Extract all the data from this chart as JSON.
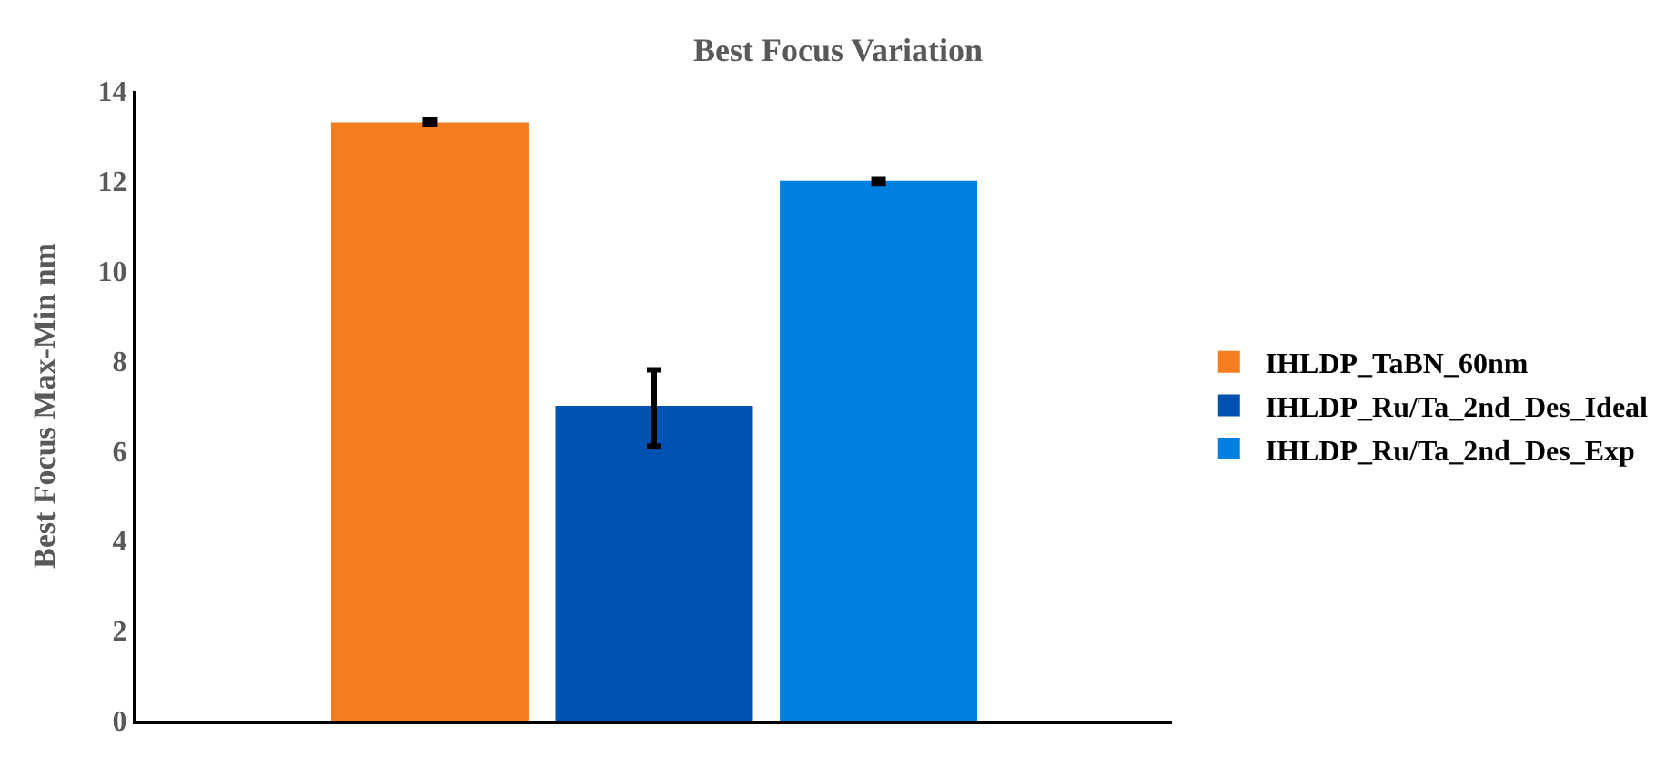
{
  "chart_data": {
    "type": "bar",
    "title": "Best Focus Variation",
    "ylabel": "Best Focus Max-Min nm",
    "categories": [
      null
    ],
    "series": [
      {
        "name": "IHLDP_TaBN_60nm",
        "color": "#f47d20",
        "values": [
          13.3
        ],
        "errors": [
          0.05
        ]
      },
      {
        "name": "IHLDP_Ru/Ta_2nd_Des_Ideal",
        "color": "#0052b0",
        "values": [
          7.0
        ],
        "errors": [
          [
            6.1,
            7.8
          ]
        ]
      },
      {
        "name": "IHLDP_Ru/Ta_2nd_Des_Exp",
        "color": "#0080e0",
        "values": [
          12.0
        ],
        "errors": [
          0.05
        ]
      }
    ],
    "ylim": [
      0,
      14
    ],
    "yticks": [
      0,
      2,
      4,
      6,
      8,
      10,
      12,
      14
    ],
    "grid": false,
    "legend": "right"
  }
}
